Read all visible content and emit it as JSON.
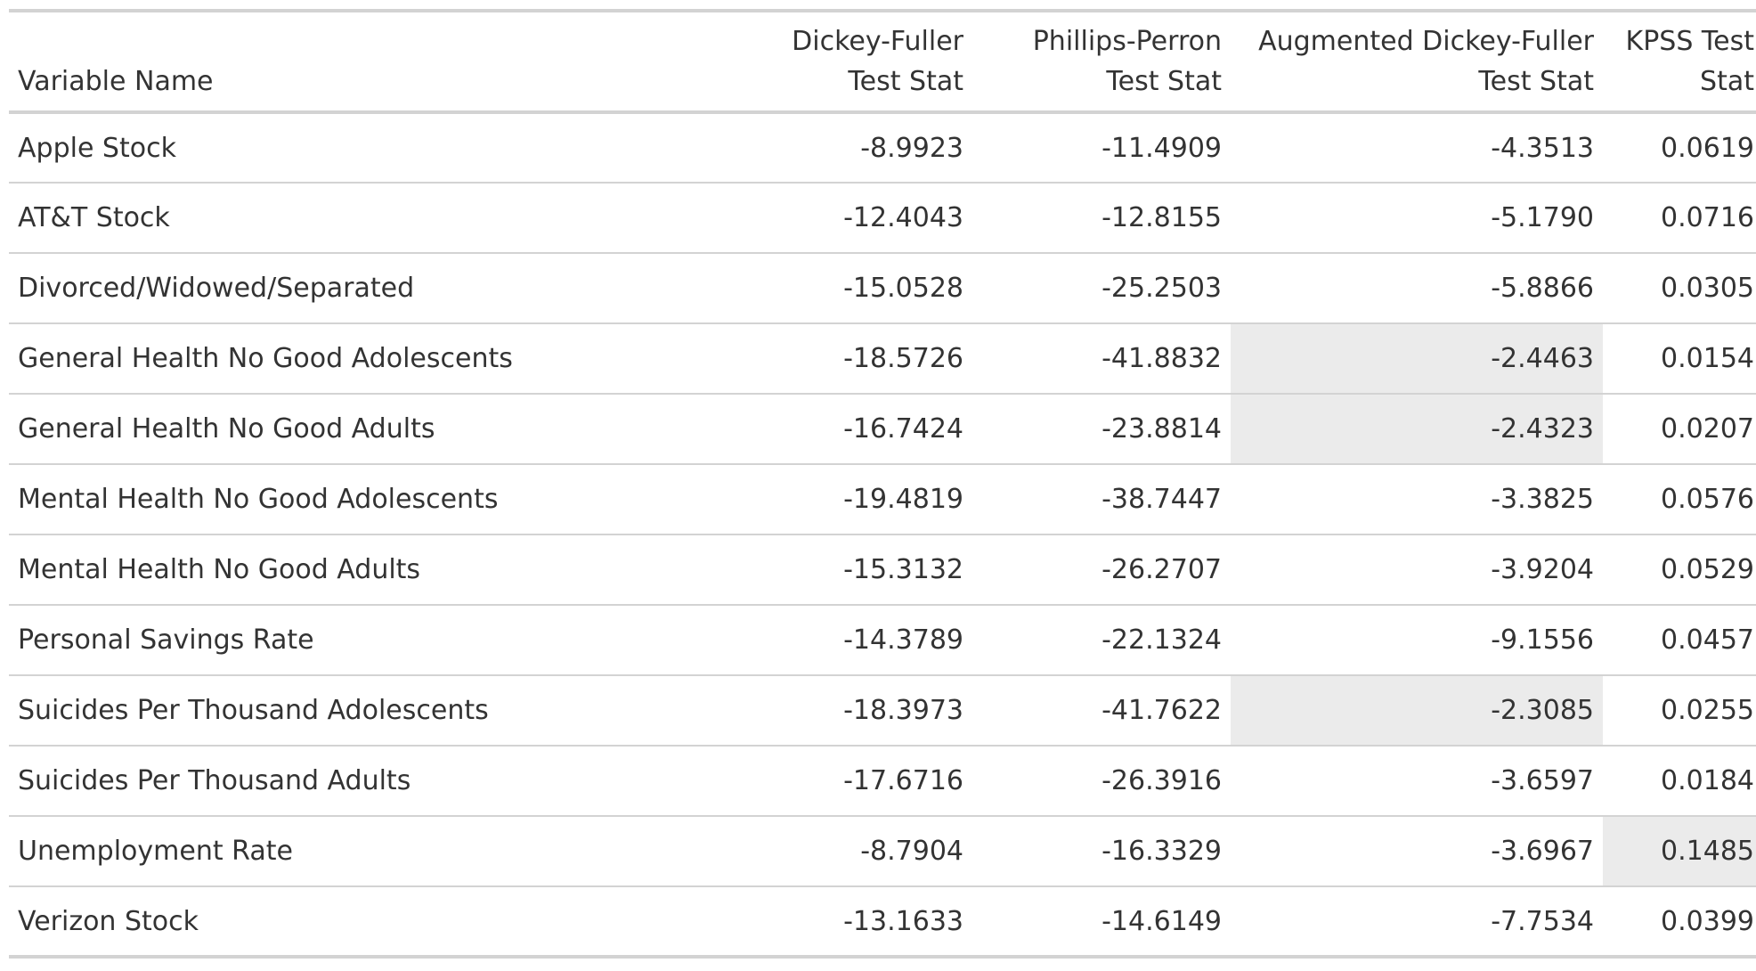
{
  "table": {
    "headers": [
      "Variable Name",
      "Dickey-Fuller Test Stat",
      "Phillips-Perron Test Stat",
      "Augmented Dickey-Fuller Test Stat",
      "KPSS Test Stat"
    ],
    "rows": [
      [
        "Apple Stock",
        "-8.9923",
        "-11.4909",
        "-4.3513",
        "0.0619"
      ],
      [
        "AT&T Stock",
        "-12.4043",
        "-12.8155",
        "-5.1790",
        "0.0716"
      ],
      [
        "Divorced/Widowed/Separated",
        "-15.0528",
        "-25.2503",
        "-5.8866",
        "0.0305"
      ],
      [
        "General Health No Good Adolescents",
        "-18.5726",
        "-41.8832",
        "-2.4463",
        "0.0154"
      ],
      [
        "General Health No Good Adults",
        "-16.7424",
        "-23.8814",
        "-2.4323",
        "0.0207"
      ],
      [
        "Mental Health No Good Adolescents",
        "-19.4819",
        "-38.7447",
        "-3.3825",
        "0.0576"
      ],
      [
        "Mental Health No Good Adults",
        "-15.3132",
        "-26.2707",
        "-3.9204",
        "0.0529"
      ],
      [
        "Personal Savings Rate",
        "-14.3789",
        "-22.1324",
        "-9.1556",
        "0.0457"
      ],
      [
        "Suicides Per Thousand Adolescents",
        "-18.3973",
        "-41.7622",
        "-2.3085",
        "0.0255"
      ],
      [
        "Suicides Per Thousand Adults",
        "-17.6716",
        "-26.3916",
        "-3.6597",
        "0.0184"
      ],
      [
        "Unemployment Rate",
        "-8.7904",
        "-16.3329",
        "-3.6967",
        "0.1485"
      ],
      [
        "Verizon Stock",
        "-13.1633",
        "-14.6149",
        "-7.7534",
        "0.0399"
      ]
    ],
    "highlight_color": "#ebebeb",
    "highlighted_cells": [
      {
        "row": 3,
        "col": 3
      },
      {
        "row": 4,
        "col": 3
      },
      {
        "row": 8,
        "col": 3
      },
      {
        "row": 10,
        "col": 4
      }
    ]
  }
}
